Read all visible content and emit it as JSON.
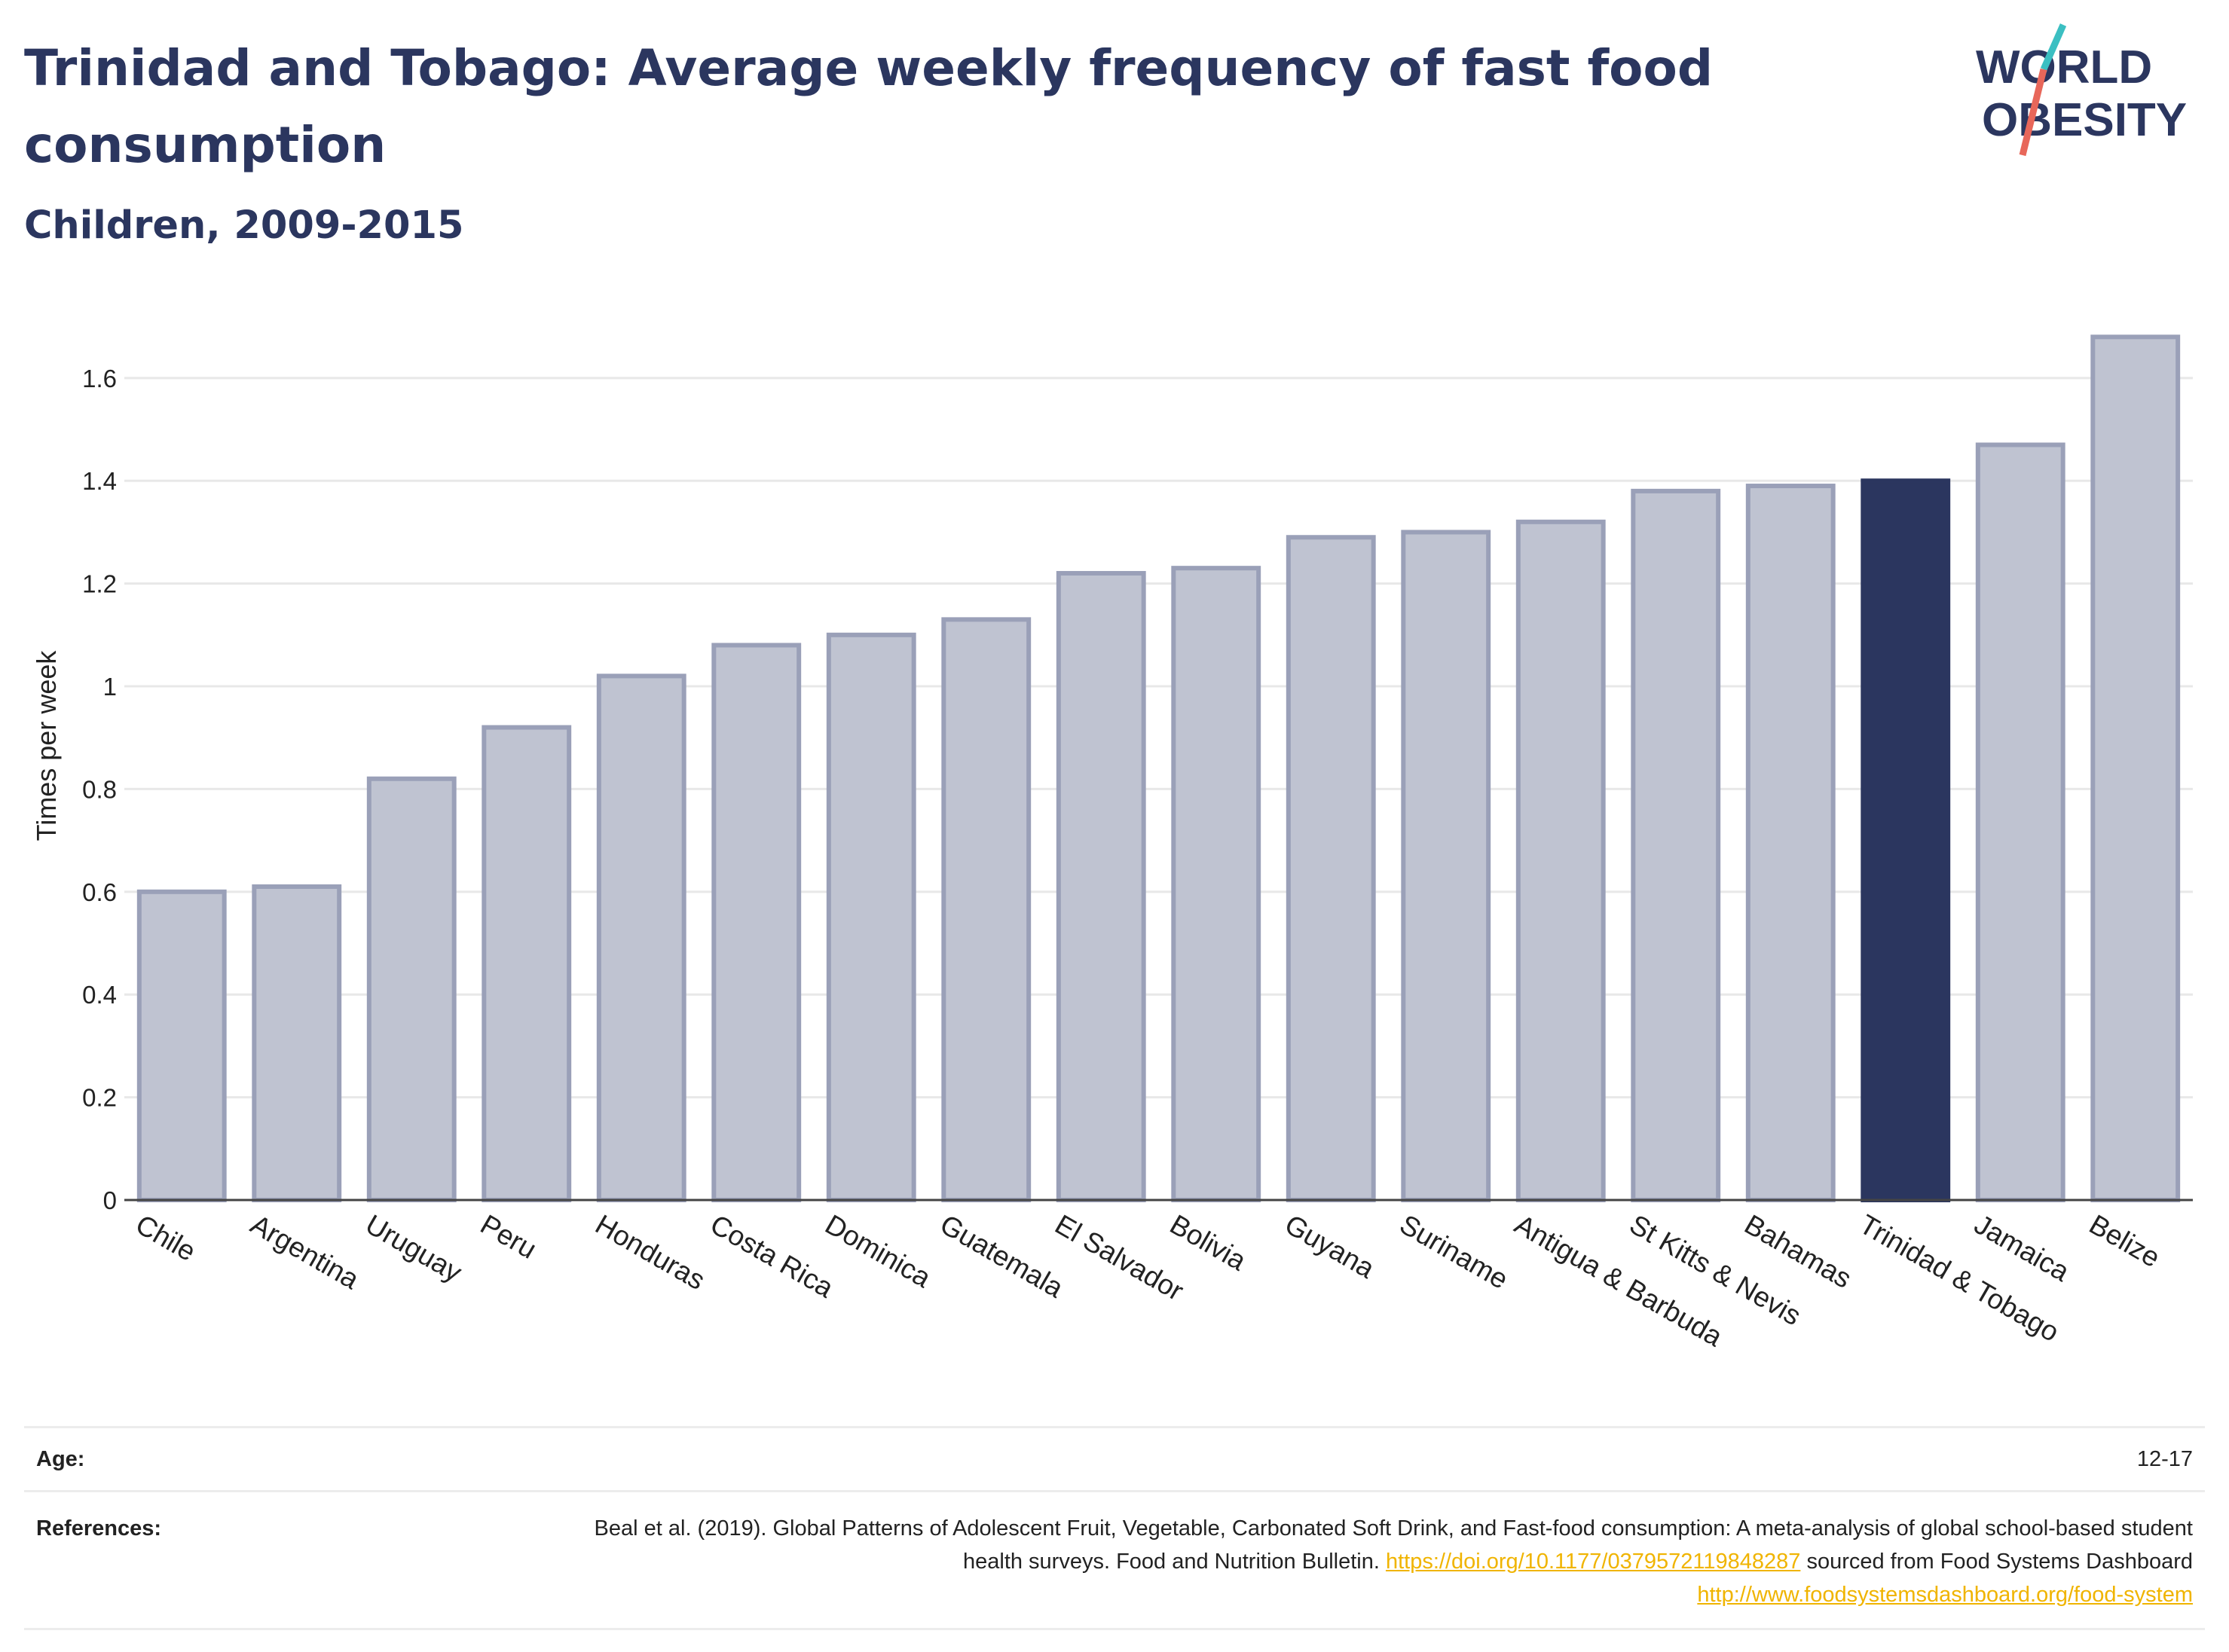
{
  "title": "Trinidad and Tobago: Average weekly frequency of fast food consumption",
  "subtitle": "Children, 2009-2015",
  "logo": {
    "line1": "WORLD",
    "line2": "OBESITY",
    "colors": {
      "text": "#2b365f",
      "slash_top": "#3bbfc2",
      "slash_bottom": "#e8675a"
    }
  },
  "colors": {
    "bar": "#bfc3d1",
    "bar_border": "#9aa0b8",
    "highlight": "#2b365f",
    "title": "#2b365f",
    "link": "#f0b400"
  },
  "chart_data": {
    "type": "bar",
    "categories": [
      "Chile",
      "Argentina",
      "Uruguay",
      "Peru",
      "Honduras",
      "Costa Rica",
      "Dominica",
      "Guatemala",
      "El Salvador",
      "Bolivia",
      "Guyana",
      "Suriname",
      "Antigua & Barbuda",
      "St Kitts & Nevis",
      "Bahamas",
      "Trinidad & Tobago",
      "Jamaica",
      "Belize"
    ],
    "values": [
      0.6,
      0.61,
      0.82,
      0.92,
      1.02,
      1.08,
      1.1,
      1.13,
      1.22,
      1.23,
      1.29,
      1.3,
      1.32,
      1.38,
      1.39,
      1.4,
      1.47,
      1.68
    ],
    "highlight": "Trinidad & Tobago",
    "ylabel": "Times per week",
    "xlabel": "",
    "ylim": [
      0,
      1.72
    ],
    "yticks": [
      0,
      0.2,
      0.4,
      0.6,
      0.8,
      1,
      1.2,
      1.4,
      1.6
    ],
    "ytick_labels": [
      "0",
      "0.2",
      "0.4",
      "0.6",
      "0.8",
      "1",
      "1.2",
      "1.4",
      "1.6"
    ],
    "grid": true
  },
  "footer": {
    "age_label": "Age:",
    "age_value": "12-17",
    "references_label": "References:",
    "ref_text_1": "Beal et al. (2019). Global Patterns of Adolescent Fruit, Vegetable, Carbonated Soft Drink, and Fast-food consumption: A meta-analysis of global school-based student health surveys. Food and Nutrition Bulletin.",
    "ref_link_1": "https://doi.org/10.1177/0379572119848287",
    "ref_text_2": "sourced from Food Systems Dashboard",
    "ref_link_2": "http://www.foodsystemsdashboard.org/food-system"
  }
}
